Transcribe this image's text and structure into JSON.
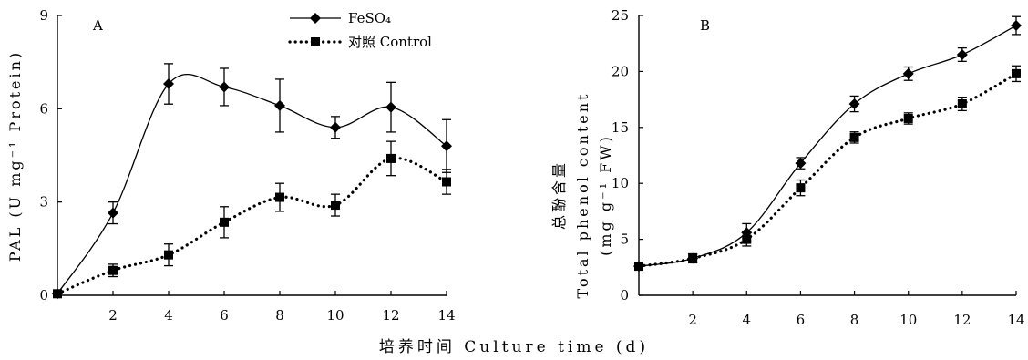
{
  "xlabel": "培养时间 Culture time (d)",
  "chart_data": [
    {
      "type": "line",
      "panel": "A",
      "ylabel": "PAL (U mg⁻¹ Protein)",
      "xlim": [
        0,
        14
      ],
      "ylim": [
        0,
        9
      ],
      "x_ticks": [
        2,
        4,
        6,
        8,
        10,
        12,
        14
      ],
      "y_ticks": [
        0,
        3,
        6,
        9
      ],
      "grid": false,
      "legend_position": "top-center",
      "series": [
        {
          "name": "FeSO₄",
          "style": "solid-diamond",
          "x": [
            0,
            2,
            4,
            6,
            8,
            10,
            12,
            14
          ],
          "y": [
            0.05,
            2.65,
            6.8,
            6.7,
            6.1,
            5.4,
            6.05,
            4.8
          ],
          "err": [
            0,
            0.35,
            0.65,
            0.6,
            0.85,
            0.35,
            0.8,
            0.85
          ]
        },
        {
          "name": "对照 Control",
          "style": "dotted-square",
          "x": [
            0,
            2,
            4,
            6,
            8,
            10,
            12,
            14
          ],
          "y": [
            0.05,
            0.8,
            1.3,
            2.35,
            3.15,
            2.9,
            4.4,
            3.65
          ],
          "err": [
            0,
            0.2,
            0.35,
            0.5,
            0.45,
            0.35,
            0.55,
            0.4
          ]
        }
      ]
    },
    {
      "type": "line",
      "panel": "B",
      "ylabel_lines": [
        "总酚含量",
        "Total phenol content",
        "(mg g⁻¹ FW)"
      ],
      "xlim": [
        0,
        14
      ],
      "ylim": [
        0,
        25
      ],
      "x_ticks": [
        2,
        4,
        6,
        8,
        10,
        12,
        14
      ],
      "y_ticks": [
        0,
        5,
        10,
        15,
        20,
        25
      ],
      "grid": false,
      "series": [
        {
          "name": "FeSO₄",
          "style": "solid-diamond",
          "x": [
            0,
            2,
            4,
            6,
            8,
            10,
            12,
            14
          ],
          "y": [
            2.6,
            3.3,
            5.6,
            11.8,
            17.1,
            19.8,
            21.5,
            24.1
          ],
          "err": [
            0.3,
            0.4,
            0.8,
            0.5,
            0.7,
            0.6,
            0.6,
            0.8
          ]
        },
        {
          "name": "对照 Control",
          "style": "dotted-square",
          "x": [
            0,
            2,
            4,
            6,
            8,
            10,
            12,
            14
          ],
          "y": [
            2.6,
            3.3,
            5.0,
            9.6,
            14.1,
            15.8,
            17.1,
            19.8
          ],
          "err": [
            0.3,
            0.4,
            0.6,
            0.7,
            0.5,
            0.5,
            0.6,
            0.7
          ]
        }
      ]
    }
  ]
}
